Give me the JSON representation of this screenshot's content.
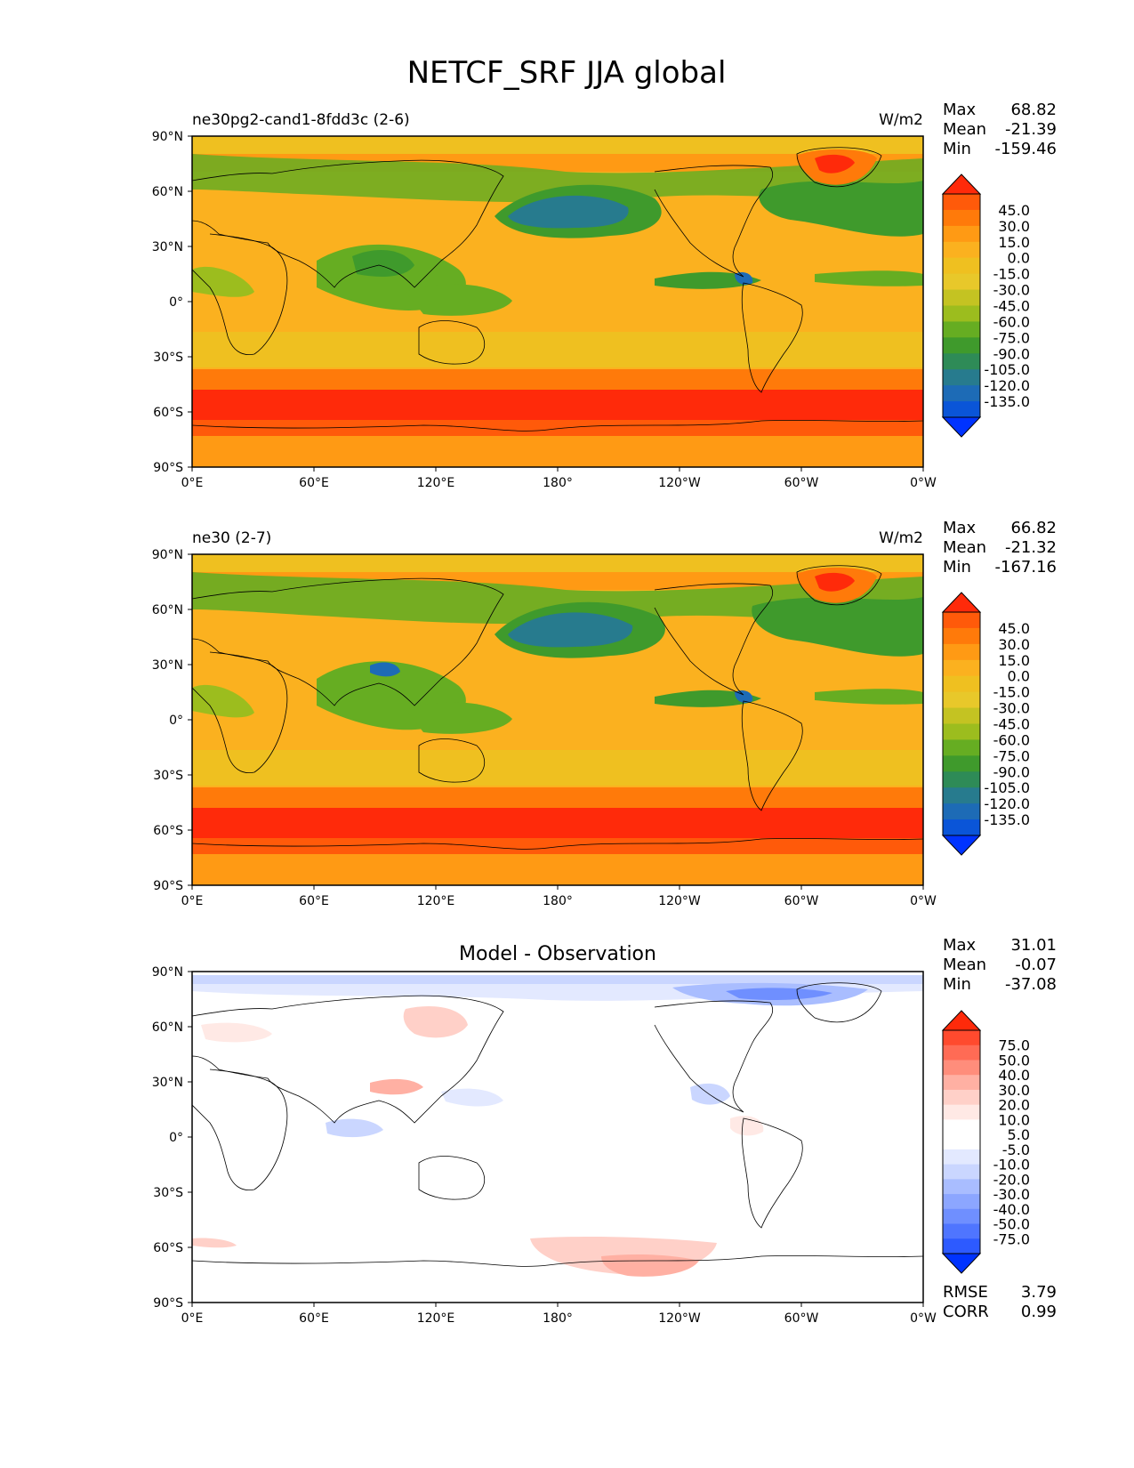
{
  "figure_title": "NETCF_SRF JJA global",
  "chart_data": [
    {
      "type": "heatmap",
      "title": "ne30pg2-cand1-8fdd3c (2-6)",
      "units": "W/m2",
      "stats": {
        "max_label": "Max",
        "max": "68.82",
        "mean_label": "Mean",
        "mean": "-21.39",
        "min_label": "Min",
        "min": "-159.46"
      },
      "colorbar": {
        "colors": [
          "#ff2a0a",
          "#ff5a0a",
          "#ff7a0a",
          "#ff9a14",
          "#fbb11f",
          "#efc020",
          "#e8c82a",
          "#c4c322",
          "#9cbd1e",
          "#66ad22",
          "#3f9a2c",
          "#2e8b57",
          "#277b8e",
          "#1d6bb6",
          "#0a55d8",
          "#0033ff"
        ],
        "labels": [
          "45.0",
          "30.0",
          "15.0",
          "0.0",
          "-15.0",
          "-30.0",
          "-45.0",
          "-60.0",
          "-75.0",
          "-90.0",
          "-105.0",
          "-120.0",
          "-135.0"
        ]
      },
      "xticks": [
        "0°E",
        "60°E",
        "120°E",
        "180°",
        "120°W",
        "60°W",
        "0°W"
      ],
      "yticks": [
        "90°N",
        "60°N",
        "30°N",
        "0°",
        "30°S",
        "60°S",
        "90°S"
      ]
    },
    {
      "type": "heatmap",
      "title": "ne30 (2-7)",
      "units": "W/m2",
      "stats": {
        "max_label": "Max",
        "max": "66.82",
        "mean_label": "Mean",
        "mean": "-21.32",
        "min_label": "Min",
        "min": "-167.16"
      },
      "colorbar": {
        "colors": [
          "#ff2a0a",
          "#ff5a0a",
          "#ff7a0a",
          "#ff9a14",
          "#fbb11f",
          "#efc020",
          "#e8c82a",
          "#c4c322",
          "#9cbd1e",
          "#66ad22",
          "#3f9a2c",
          "#2e8b57",
          "#277b8e",
          "#1d6bb6",
          "#0a55d8",
          "#0033ff"
        ],
        "labels": [
          "45.0",
          "30.0",
          "15.0",
          "0.0",
          "-15.0",
          "-30.0",
          "-45.0",
          "-60.0",
          "-75.0",
          "-90.0",
          "-105.0",
          "-120.0",
          "-135.0"
        ]
      },
      "xticks": [
        "0°E",
        "60°E",
        "120°E",
        "180°",
        "120°W",
        "60°W",
        "0°W"
      ],
      "yticks": [
        "90°N",
        "60°N",
        "30°N",
        "0°",
        "30°S",
        "60°S",
        "90°S"
      ]
    },
    {
      "type": "heatmap",
      "title": "Model - Observation",
      "units": "",
      "stats": {
        "max_label": "Max",
        "max": "31.01",
        "mean_label": "Mean",
        "mean": "-0.07",
        "min_label": "Min",
        "min": "-37.08"
      },
      "colorbar": {
        "colors": [
          "#ff2a0a",
          "#ff4a2e",
          "#ff6b55",
          "#ff8d7b",
          "#ffb0a3",
          "#ffd0c8",
          "#ffe9e5",
          "#ffffff",
          "#ffffff",
          "#e3e9ff",
          "#cad6ff",
          "#a9bdff",
          "#8ca6ff",
          "#6f8fff",
          "#4f75ff",
          "#2d5aff",
          "#0033ff"
        ],
        "labels": [
          "75.0",
          "50.0",
          "40.0",
          "30.0",
          "20.0",
          "10.0",
          "5.0",
          "-5.0",
          "-10.0",
          "-20.0",
          "-30.0",
          "-40.0",
          "-50.0",
          "-75.0"
        ]
      },
      "xticks": [
        "0°E",
        "60°E",
        "120°E",
        "180°",
        "120°W",
        "60°W",
        "0°W"
      ],
      "yticks": [
        "90°N",
        "60°N",
        "30°N",
        "0°",
        "30°S",
        "60°S",
        "90°S"
      ],
      "rmse_label": "RMSE",
      "rmse": "3.79",
      "corr_label": "CORR",
      "corr": "0.99"
    }
  ]
}
